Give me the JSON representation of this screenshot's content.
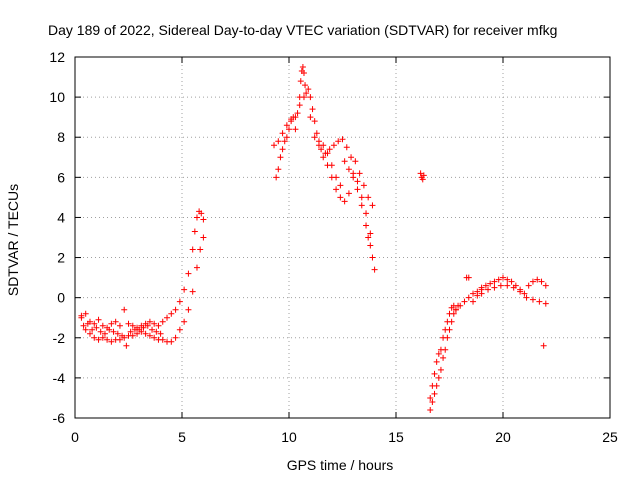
{
  "chart_data": {
    "type": "scatter",
    "title": "Day 189 of 2022, Sidereal Day-to-day VTEC variation (SDTVAR) for receiver mfkg",
    "xlabel": "GPS time / hours",
    "ylabel": "SDTVAR / TECUs",
    "xlim": [
      0,
      25
    ],
    "ylim": [
      -6,
      12
    ],
    "xticks": [
      0,
      5,
      10,
      15,
      20,
      25
    ],
    "yticks": [
      -6,
      -4,
      -2,
      0,
      2,
      4,
      6,
      8,
      10,
      12
    ],
    "grid": true,
    "marker": "plus",
    "color": "#ff0000",
    "series": [
      {
        "name": "segment-1-lower",
        "x": [
          0.3,
          0.5,
          0.7,
          0.9,
          1.1,
          1.3,
          1.5,
          1.7,
          1.9,
          2.1,
          2.3,
          2.5,
          2.7,
          2.9,
          3.1,
          3.3,
          3.5,
          3.7,
          3.9,
          4.1,
          4.3,
          4.5,
          4.7,
          4.9,
          5.1,
          5.3,
          5.5,
          5.7,
          5.85,
          6.0
        ],
        "y": [
          -1.0,
          -1.6,
          -1.8,
          -2.0,
          -2.1,
          -2.0,
          -2.1,
          -2.2,
          -2.1,
          -2.1,
          -2.0,
          -1.9,
          -1.9,
          -1.8,
          -1.7,
          -1.8,
          -1.9,
          -2.0,
          -2.1,
          -2.1,
          -2.2,
          -2.2,
          -2.0,
          -1.6,
          -1.2,
          -0.6,
          0.3,
          1.5,
          2.4,
          3.0
        ]
      },
      {
        "name": "segment-1-upper",
        "x": [
          0.3,
          0.5,
          0.7,
          0.9,
          1.1,
          1.3,
          1.5,
          1.7,
          1.9,
          2.1,
          2.3,
          2.5,
          2.7,
          2.9,
          3.1,
          3.3,
          3.5,
          3.7,
          3.9,
          4.1,
          4.3,
          4.5,
          4.7,
          4.9,
          5.1,
          5.3,
          5.5,
          5.6,
          5.7,
          5.8,
          5.9,
          6.0
        ],
        "y": [
          -0.9,
          -0.8,
          -1.2,
          -1.3,
          -1.1,
          -1.4,
          -1.5,
          -1.3,
          -1.2,
          -1.4,
          -0.6,
          -1.3,
          -1.4,
          -1.5,
          -1.4,
          -1.3,
          -1.2,
          -1.3,
          -1.4,
          -1.2,
          -1.0,
          -0.8,
          -0.6,
          -0.2,
          0.4,
          1.2,
          2.4,
          3.3,
          4.0,
          4.3,
          4.2,
          3.9
        ]
      },
      {
        "name": "segment-1-spread",
        "x": [
          0.4,
          0.6,
          0.8,
          1.0,
          1.2,
          1.4,
          1.6,
          1.8,
          2.0,
          2.2,
          2.4,
          2.6,
          2.8,
          3.0,
          3.2,
          3.4,
          3.6,
          3.8,
          4.0
        ],
        "y": [
          -1.4,
          -1.3,
          -1.6,
          -1.5,
          -1.7,
          -1.8,
          -1.6,
          -1.7,
          -1.8,
          -1.9,
          -2.4,
          -1.7,
          -1.6,
          -1.6,
          -1.5,
          -1.4,
          -1.6,
          -1.7,
          -1.8
        ]
      },
      {
        "name": "segment-2-rise",
        "x": [
          9.4,
          9.5,
          9.6,
          9.7,
          9.8,
          9.9,
          10.0,
          10.1,
          10.2,
          10.3,
          10.4,
          10.5,
          10.55,
          10.6,
          10.65,
          10.7,
          10.75,
          10.8
        ],
        "y": [
          6.0,
          6.4,
          7.0,
          7.4,
          7.8,
          8.0,
          8.4,
          8.8,
          9.0,
          8.4,
          9.2,
          10.0,
          10.8,
          11.3,
          11.5,
          11.2,
          10.6,
          10.2
        ]
      },
      {
        "name": "segment-2-upper",
        "x": [
          9.3,
          9.5,
          9.7,
          9.9,
          10.1,
          10.3,
          10.5,
          10.7,
          10.9,
          11.0,
          11.1,
          11.2,
          11.3,
          11.4,
          11.5,
          11.7,
          11.9,
          12.1,
          12.3,
          12.5,
          12.7,
          12.9,
          13.1,
          13.3,
          13.5,
          13.7,
          13.9
        ],
        "y": [
          7.6,
          7.8,
          8.2,
          8.6,
          8.9,
          9.0,
          9.6,
          10.0,
          10.4,
          10.0,
          9.4,
          8.8,
          8.2,
          7.8,
          7.4,
          7.2,
          7.4,
          7.6,
          7.8,
          7.9,
          7.5,
          7.0,
          6.8,
          6.2,
          5.6,
          5.0,
          4.6
        ]
      },
      {
        "name": "segment-2-lower",
        "x": [
          11.0,
          11.2,
          11.4,
          11.6,
          11.8,
          12.0,
          12.2,
          12.4,
          12.6,
          12.8,
          13.0,
          13.2,
          13.4,
          13.6,
          13.7,
          13.8,
          13.9,
          14.0
        ],
        "y": [
          9.0,
          8.0,
          7.6,
          7.0,
          6.6,
          6.0,
          5.4,
          5.0,
          4.8,
          5.2,
          6.0,
          5.4,
          4.6,
          3.6,
          3.0,
          2.6,
          2.0,
          1.4
        ]
      },
      {
        "name": "segment-2-mid",
        "x": [
          11.6,
          11.8,
          12.0,
          12.2,
          12.4,
          12.6,
          12.8,
          13.0,
          13.2,
          13.4,
          13.6,
          13.8
        ],
        "y": [
          7.6,
          7.2,
          6.6,
          6.0,
          5.6,
          6.8,
          6.4,
          6.2,
          5.8,
          5.0,
          4.2,
          3.2
        ]
      },
      {
        "name": "segment-3-isolated",
        "x": [
          16.15,
          16.2,
          16.25,
          16.3
        ],
        "y": [
          6.2,
          6.0,
          5.9,
          6.1
        ]
      },
      {
        "name": "segment-4-rise",
        "x": [
          16.6,
          16.7,
          16.8,
          16.9,
          17.0,
          17.1,
          17.2,
          17.3,
          17.4,
          17.5,
          17.6,
          17.7,
          17.8,
          17.9,
          18.0,
          18.2,
          18.4,
          18.6,
          18.8,
          19.0
        ],
        "y": [
          -5.6,
          -5.2,
          -4.8,
          -4.4,
          -4.0,
          -3.6,
          -3.0,
          -2.6,
          -2.0,
          -1.6,
          -1.2,
          -0.8,
          -0.6,
          -0.4,
          -0.4,
          -0.2,
          0.0,
          0.2,
          0.3,
          0.4
        ]
      },
      {
        "name": "segment-4-upper",
        "x": [
          16.6,
          16.7,
          16.8,
          16.9,
          17.0,
          17.1,
          17.2,
          17.3,
          17.4,
          17.5,
          17.6,
          17.7,
          17.8,
          18.3,
          18.4,
          18.6,
          18.8
        ],
        "y": [
          -5.0,
          -4.4,
          -3.8,
          -3.2,
          -2.8,
          -2.6,
          -2.0,
          -1.6,
          -1.2,
          -0.8,
          -0.5,
          -0.4,
          -0.6,
          1.0,
          1.0,
          -0.2,
          0.1
        ]
      },
      {
        "name": "segment-4-plateau",
        "x": [
          19.0,
          19.2,
          19.4,
          19.6,
          19.8,
          20.0,
          20.2,
          20.4,
          20.6,
          20.8,
          21.0,
          21.2,
          21.4,
          21.6,
          21.8,
          22.0
        ],
        "y": [
          0.5,
          0.6,
          0.7,
          0.8,
          0.9,
          1.0,
          0.9,
          0.8,
          0.6,
          0.4,
          0.2,
          0.6,
          0.8,
          0.9,
          0.8,
          0.6
        ]
      },
      {
        "name": "segment-4-plateau-lower",
        "x": [
          19.0,
          19.3,
          19.6,
          19.9,
          20.2,
          20.5,
          20.8,
          21.1,
          21.4,
          21.7,
          22.0,
          21.9
        ],
        "y": [
          0.2,
          0.4,
          0.5,
          0.6,
          0.6,
          0.5,
          0.3,
          0.0,
          -0.1,
          -0.2,
          -0.3,
          -2.4
        ]
      }
    ]
  }
}
